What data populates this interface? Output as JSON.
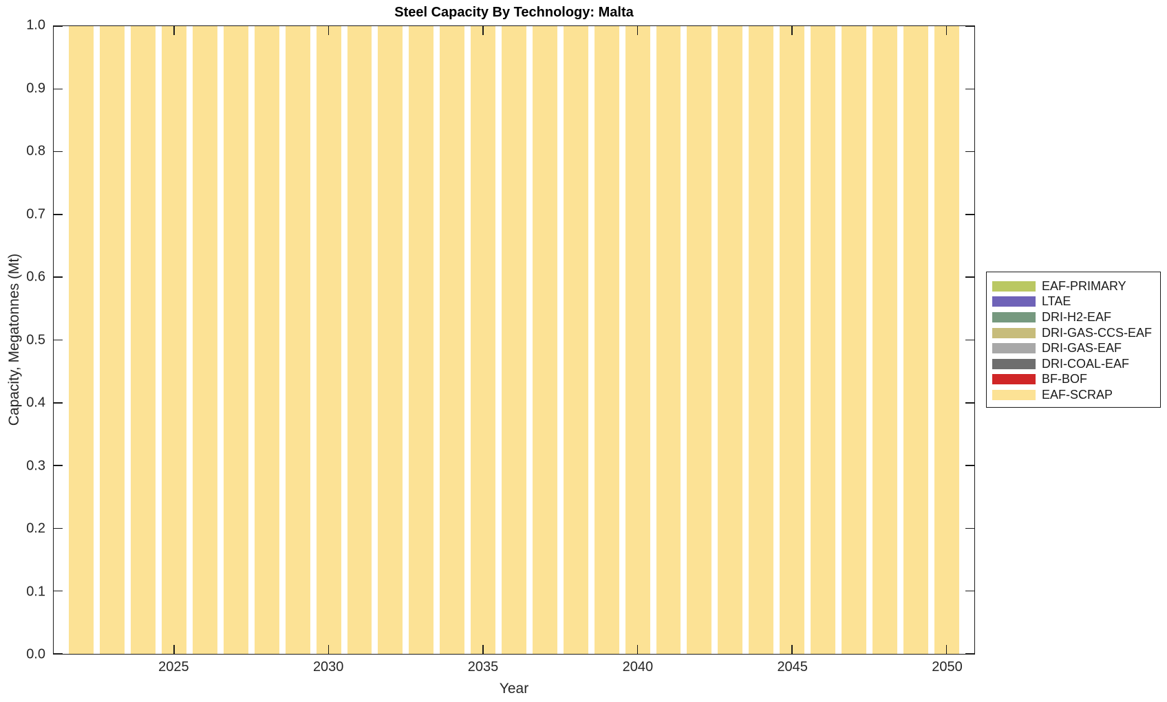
{
  "title": "Steel Capacity By Technology: Malta",
  "axes": {
    "xlabel": "Year",
    "ylabel": "Capacity, Megatonnes (Mt)",
    "x_ticks": [
      {
        "v": 2025,
        "label": "2025"
      },
      {
        "v": 2030,
        "label": "2030"
      },
      {
        "v": 2035,
        "label": "2035"
      },
      {
        "v": 2040,
        "label": "2040"
      },
      {
        "v": 2045,
        "label": "2045"
      },
      {
        "v": 2050,
        "label": "2050"
      }
    ],
    "y_ticks": [
      {
        "v": 0.0,
        "label": "0.0"
      },
      {
        "v": 0.1,
        "label": "0.1"
      },
      {
        "v": 0.2,
        "label": "0.2"
      },
      {
        "v": 0.3,
        "label": "0.3"
      },
      {
        "v": 0.4,
        "label": "0.4"
      },
      {
        "v": 0.5,
        "label": "0.5"
      },
      {
        "v": 0.6,
        "label": "0.6"
      },
      {
        "v": 0.7,
        "label": "0.7"
      },
      {
        "v": 0.8,
        "label": "0.8"
      },
      {
        "v": 0.9,
        "label": "0.9"
      },
      {
        "v": 1.0,
        "label": "1.0"
      }
    ]
  },
  "chart_data": {
    "type": "bar",
    "stacked": true,
    "title": "Steel Capacity By Technology: Malta",
    "xlabel": "Year",
    "ylabel": "Capacity, Megatonnes (Mt)",
    "x": [
      2022,
      2023,
      2024,
      2025,
      2026,
      2027,
      2028,
      2029,
      2030,
      2031,
      2032,
      2033,
      2034,
      2035,
      2036,
      2037,
      2038,
      2039,
      2040,
      2041,
      2042,
      2043,
      2044,
      2045,
      2046,
      2047,
      2048,
      2049,
      2050
    ],
    "series": [
      {
        "name": "EAF-PRIMARY",
        "color": "#BAC863",
        "values": [
          0,
          0,
          0,
          0,
          0,
          0,
          0,
          0,
          0,
          0,
          0,
          0,
          0,
          0,
          0,
          0,
          0,
          0,
          0,
          0,
          0,
          0,
          0,
          0,
          0,
          0,
          0,
          0,
          0
        ]
      },
      {
        "name": "LTAE",
        "color": "#6F63B8",
        "values": [
          0,
          0,
          0,
          0,
          0,
          0,
          0,
          0,
          0,
          0,
          0,
          0,
          0,
          0,
          0,
          0,
          0,
          0,
          0,
          0,
          0,
          0,
          0,
          0,
          0,
          0,
          0,
          0,
          0
        ]
      },
      {
        "name": "DRI-H2-EAF",
        "color": "#76997F",
        "values": [
          0,
          0,
          0,
          0,
          0,
          0,
          0,
          0,
          0,
          0,
          0,
          0,
          0,
          0,
          0,
          0,
          0,
          0,
          0,
          0,
          0,
          0,
          0,
          0,
          0,
          0,
          0,
          0,
          0
        ]
      },
      {
        "name": "DRI-GAS-CCS-EAF",
        "color": "#C7BC7B",
        "values": [
          0,
          0,
          0,
          0,
          0,
          0,
          0,
          0,
          0,
          0,
          0,
          0,
          0,
          0,
          0,
          0,
          0,
          0,
          0,
          0,
          0,
          0,
          0,
          0,
          0,
          0,
          0,
          0,
          0
        ]
      },
      {
        "name": "DRI-GAS-EAF",
        "color": "#A8A8A8",
        "values": [
          0,
          0,
          0,
          0,
          0,
          0,
          0,
          0,
          0,
          0,
          0,
          0,
          0,
          0,
          0,
          0,
          0,
          0,
          0,
          0,
          0,
          0,
          0,
          0,
          0,
          0,
          0,
          0,
          0
        ]
      },
      {
        "name": "DRI-COAL-EAF",
        "color": "#6E6E6E",
        "values": [
          0,
          0,
          0,
          0,
          0,
          0,
          0,
          0,
          0,
          0,
          0,
          0,
          0,
          0,
          0,
          0,
          0,
          0,
          0,
          0,
          0,
          0,
          0,
          0,
          0,
          0,
          0,
          0,
          0
        ]
      },
      {
        "name": "BF-BOF",
        "color": "#D02627",
        "values": [
          0,
          0,
          0,
          0,
          0,
          0,
          0,
          0,
          0,
          0,
          0,
          0,
          0,
          0,
          0,
          0,
          0,
          0,
          0,
          0,
          0,
          0,
          0,
          0,
          0,
          0,
          0,
          0,
          0
        ]
      },
      {
        "name": "EAF-SCRAP",
        "color": "#FCE295",
        "values": [
          1,
          1,
          1,
          1,
          1,
          1,
          1,
          1,
          1,
          1,
          1,
          1,
          1,
          1,
          1,
          1,
          1,
          1,
          1,
          1,
          1,
          1,
          1,
          1,
          1,
          1,
          1,
          1,
          1
        ]
      }
    ],
    "xlim": [
      2021.1,
      2050.9
    ],
    "ylim": [
      0,
      1
    ],
    "bar_width": 0.8,
    "grid": false,
    "legend_position": "right-outside"
  }
}
